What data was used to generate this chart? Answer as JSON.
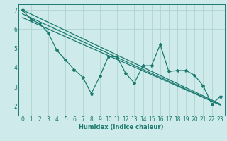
{
  "title": "",
  "xlabel": "Humidex (Indice chaleur)",
  "ylabel": "",
  "xlim": [
    -0.5,
    23.5
  ],
  "ylim": [
    1.5,
    7.3
  ],
  "yticks": [
    2,
    3,
    4,
    5,
    6,
    7
  ],
  "xticks": [
    0,
    1,
    2,
    3,
    4,
    5,
    6,
    7,
    8,
    9,
    10,
    11,
    12,
    13,
    14,
    15,
    16,
    17,
    18,
    19,
    20,
    21,
    22,
    23
  ],
  "xtick_labels": [
    "0",
    "1",
    "2",
    "3",
    "4",
    "5",
    "6",
    "7",
    "8",
    "9",
    "10",
    "11",
    "12",
    "13",
    "14",
    "15",
    "16",
    "17",
    "18",
    "19",
    "20",
    "21",
    "22",
    "23"
  ],
  "bg_color": "#ceeaea",
  "line_color": "#1a7a6e",
  "grid_color": "#aed4d0",
  "series1_x": [
    0,
    1,
    2,
    3,
    4,
    5,
    6,
    7,
    8,
    9,
    10,
    11,
    12,
    13,
    14,
    15,
    16,
    17,
    18,
    19,
    20,
    21,
    22,
    23
  ],
  "series1_y": [
    7.0,
    6.5,
    6.3,
    5.8,
    4.9,
    4.4,
    3.9,
    3.5,
    2.65,
    3.55,
    4.6,
    4.55,
    3.7,
    3.2,
    4.1,
    4.1,
    5.2,
    3.8,
    3.85,
    3.85,
    3.6,
    3.05,
    2.1,
    2.5
  ],
  "trend1_x": [
    0,
    23
  ],
  "trend1_y": [
    7.0,
    2.1
  ],
  "trend2_x": [
    0,
    23
  ],
  "trend2_y": [
    6.8,
    2.05
  ],
  "trend3_x": [
    0,
    23
  ],
  "trend3_y": [
    6.6,
    2.05
  ]
}
